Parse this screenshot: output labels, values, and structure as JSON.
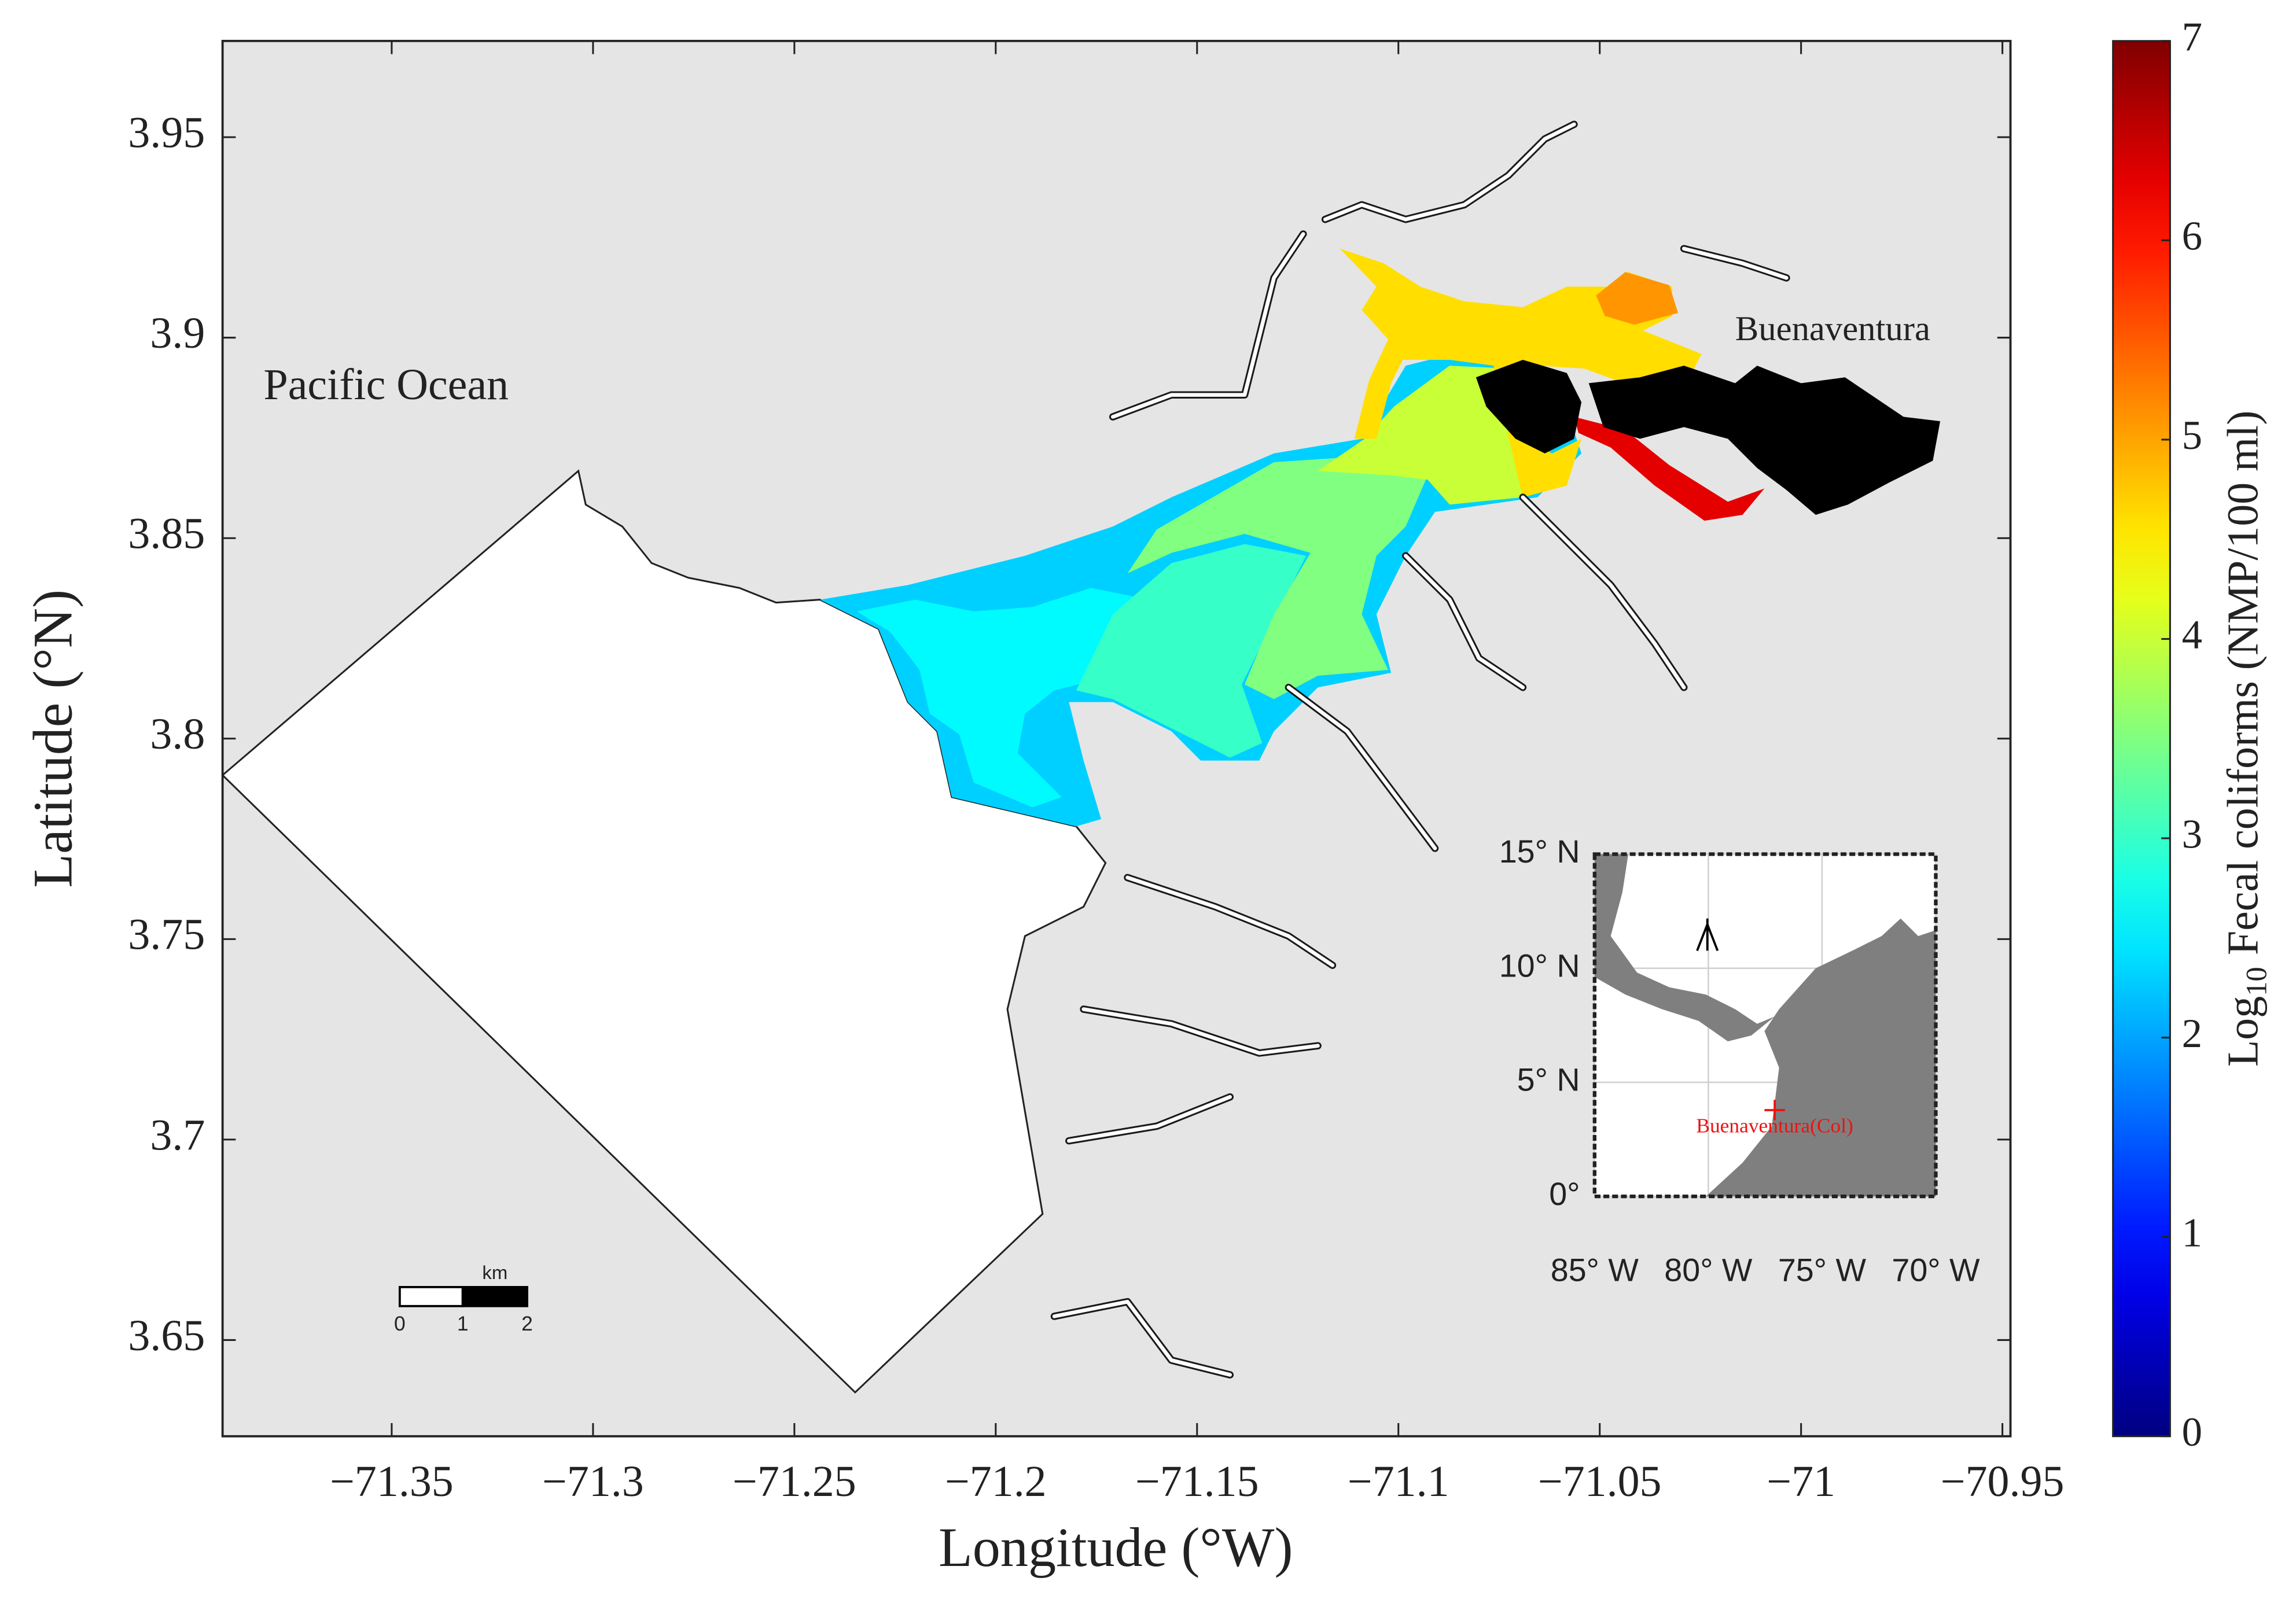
{
  "chart_data": {
    "type": "map",
    "xlabel": "Longitude (°W)",
    "ylabel": "Latitude (°N)",
    "xlim": [
      -71.392,
      -70.948
    ],
    "ylim": [
      3.626,
      3.974
    ],
    "xticks": [
      {
        "value": -71.35,
        "label": "−71.35"
      },
      {
        "value": -71.3,
        "label": "−71.3"
      },
      {
        "value": -71.25,
        "label": "−71.25"
      },
      {
        "value": -71.2,
        "label": "−71.2"
      },
      {
        "value": -71.15,
        "label": "−71.15"
      },
      {
        "value": -71.1,
        "label": "−71.1"
      },
      {
        "value": -71.05,
        "label": "−71.05"
      },
      {
        "value": -71,
        "label": "−71"
      },
      {
        "value": -70.95,
        "label": "−70.95"
      }
    ],
    "yticks": [
      3.65,
      3.7,
      3.75,
      3.8,
      3.85,
      3.9,
      3.95
    ],
    "colorbar": {
      "label_parts": [
        "Log",
        "10",
        "Fecal coliforms (NMP/100 ml)"
      ],
      "lim": [
        0,
        7
      ],
      "ticks": [
        0,
        1,
        2,
        3,
        4,
        5,
        6,
        7
      ],
      "colormap": "jet"
    },
    "levels": [
      2.3,
      2.6,
      3.0,
      3.5,
      4.0,
      4.6,
      5.1,
      6.3
    ],
    "annotations": [
      "Pacific Ocean",
      "Buenaventura"
    ],
    "scale_bar": {
      "unit": "km",
      "ticks": [
        0,
        1,
        2
      ]
    },
    "inset": {
      "xlim": [
        -85,
        -70
      ],
      "ylim": [
        0,
        15
      ],
      "xticks": [
        {
          "value": -85,
          "label": "85° W"
        },
        {
          "value": -80,
          "label": "80° W"
        },
        {
          "value": -75,
          "label": "75° W"
        },
        {
          "value": -70,
          "label": "70° W"
        }
      ],
      "yticks": [
        {
          "value": 0,
          "label": "0°"
        },
        {
          "value": 5,
          "label": "5° N"
        },
        {
          "value": 10,
          "label": "10° N"
        },
        {
          "value": 15,
          "label": "15° N"
        }
      ],
      "label": "Buenaventura(Col)"
    }
  }
}
